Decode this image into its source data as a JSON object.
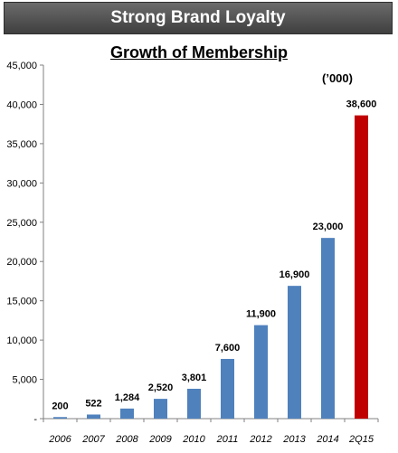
{
  "banner": {
    "title": "Strong Brand Loyalty"
  },
  "chart_data": {
    "type": "bar",
    "title": "Growth of Membership",
    "unit": "(’000)",
    "categories": [
      "2006",
      "2007",
      "2008",
      "2009",
      "2010",
      "2011",
      "2012",
      "2013",
      "2014",
      "2Q15"
    ],
    "values": [
      200,
      522,
      1284,
      2520,
      3801,
      7600,
      11900,
      16900,
      23000,
      38600
    ],
    "value_labels": [
      "200",
      "522",
      "1,284",
      "2,520",
      "3,801",
      "7,600",
      "11,900",
      "16,900",
      "23,000",
      "38,600"
    ],
    "bar_colors": [
      "#4f81bd",
      "#4f81bd",
      "#4f81bd",
      "#4f81bd",
      "#4f81bd",
      "#4f81bd",
      "#4f81bd",
      "#4f81bd",
      "#4f81bd",
      "#c00000"
    ],
    "ylim": [
      0,
      45000
    ],
    "yticks": [
      0,
      5000,
      10000,
      15000,
      20000,
      25000,
      30000,
      35000,
      40000,
      45000
    ],
    "ytick_labels": [
      "-",
      "5,000",
      "10,000",
      "15,000",
      "20,000",
      "25,000",
      "30,000",
      "35,000",
      "40,000",
      "45,000"
    ],
    "grid": false,
    "legend": "none"
  }
}
